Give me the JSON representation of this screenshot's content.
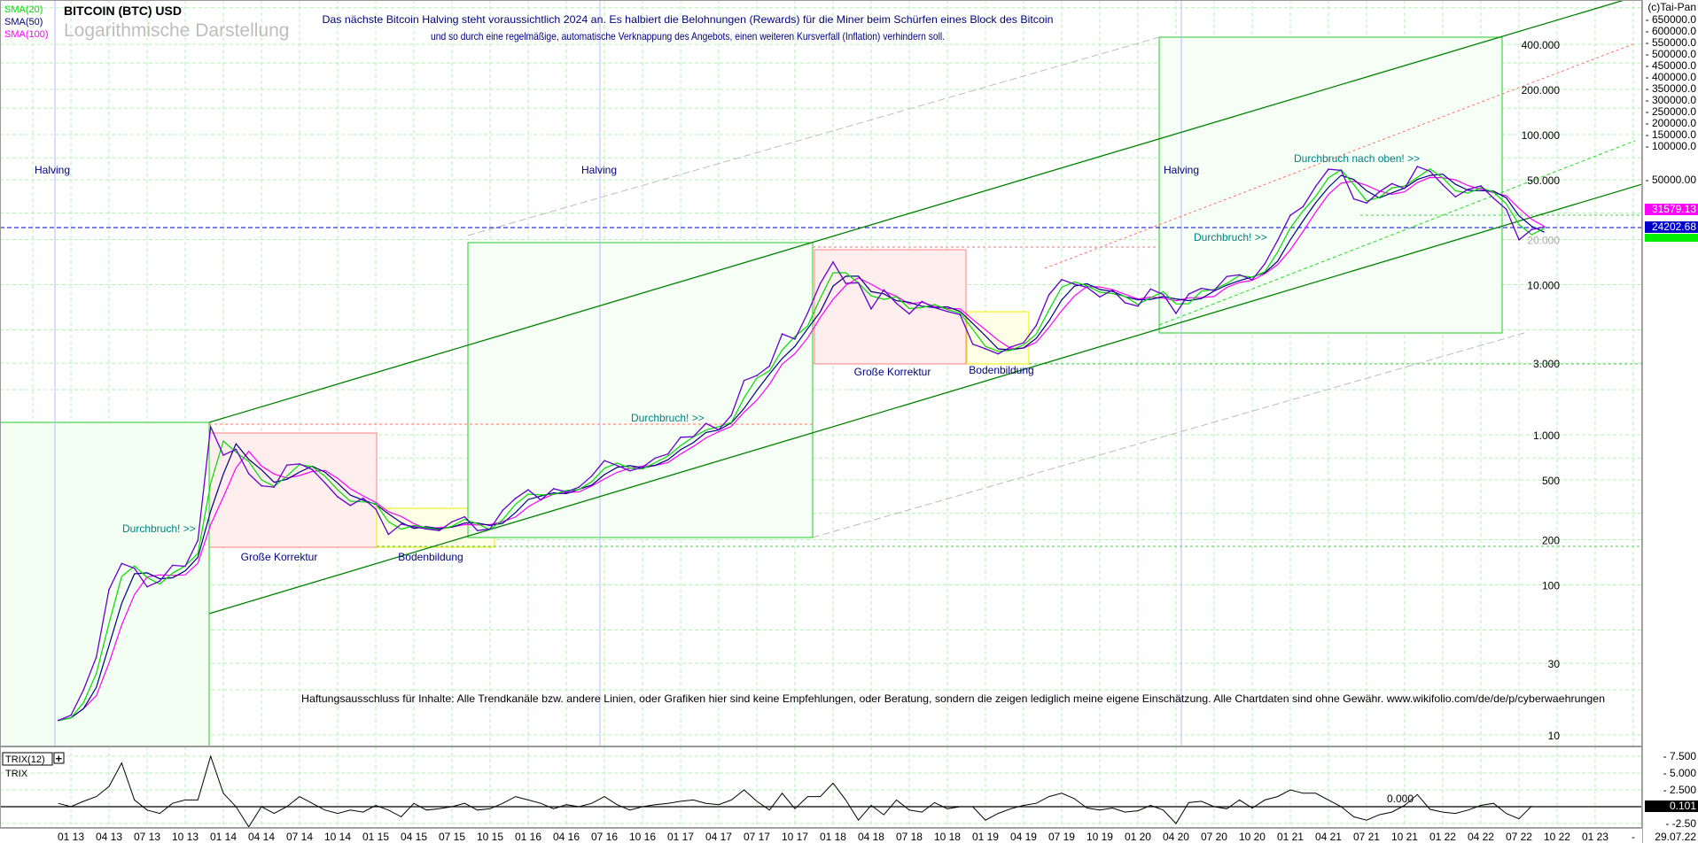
{
  "legend": {
    "sma20": "SMA(20)",
    "sma50": "SMA(50)",
    "sma100": "SMA(100)"
  },
  "title": "BITCOIN (BTC) USD",
  "subtitle": "Logarithmische Darstellung",
  "header_line1": "Das nächste Bitcoin Halving steht voraussichtlich 2024 an. Es halbiert die Belohnungen (Rewards) für die Miner beim Schürfen eines Block des Bitcoin",
  "header_line2": "und so durch eine regelmäßige, automatische Verknappung des Angebots, einen weiteren Kursverfall (Inflation) verhindern soll.",
  "copyright": "(c)Tai-Pan",
  "disclaimer": "Haftungsausschluss für Inhalte: Alle Trendkanäle bzw. andere Linien, oder Grafiken hier sind keine Empfehlungen, oder Beratung, sondern die zeigen lediglich meine eigene Einschätzung. Alle Chartdaten sind ohne Gewähr.  www.wikifolio.com/de/de/p/cyberwaehrungen",
  "annotations": {
    "halving": "Halving",
    "breakout": "Durchbruch! >>",
    "breakout_up": "Durchbruch nach oben! >>",
    "correction": "Große Korrektur",
    "bottoming": "Bodenbildung"
  },
  "colors": {
    "sma20": "#00dd00",
    "sma50": "#000080",
    "sma100": "#ff00ff",
    "price": "#6600cc",
    "grid": "#b0f5b0",
    "channel": "#008000"
  },
  "chart_data": {
    "type": "line",
    "title": "BITCOIN (BTC) USD",
    "yscale": "log",
    "ylim": [
      8,
      700000
    ],
    "start_month": "2012-11",
    "closes": [
      12.5,
      13.5,
      20,
      33,
      93,
      139,
      129,
      97,
      106,
      135,
      133,
      198,
      1130,
      732,
      800,
      550,
      457,
      448,
      628,
      640,
      586,
      478,
      386,
      338,
      378,
      320,
      217,
      254,
      244,
      236,
      230,
      263,
      284,
      230,
      236,
      314,
      377,
      430,
      368,
      437,
      416,
      448,
      531,
      673,
      624,
      575,
      608,
      700,
      745,
      963,
      970,
      1190,
      1080,
      1350,
      2300,
      2480,
      2870,
      4700,
      4340,
      6470,
      10200,
      14150,
      10200,
      10300,
      6900,
      9240,
      7500,
      6400,
      7730,
      7030,
      6630,
      6320,
      4020,
      3740,
      3460,
      3850,
      4100,
      5350,
      8570,
      10800,
      10080,
      9600,
      8290,
      9200,
      7570,
      7190,
      9350,
      8600,
      6440,
      8660,
      9460,
      9140,
      11350,
      11650,
      10780,
      13800,
      19700,
      29000,
      33100,
      45200,
      58800,
      57800,
      37300,
      35000,
      41500,
      47100,
      43800,
      61300,
      57000,
      46300,
      38500,
      43200,
      45500,
      37700,
      31800,
      19900,
      23300,
      24202.68
    ],
    "last_price": "24202.68",
    "sma100_last": "31579.13",
    "inner_price_labels": [
      {
        "v": 400000,
        "t": "400.000"
      },
      {
        "v": 200000,
        "t": "200.000"
      },
      {
        "v": 100000,
        "t": "100.000"
      },
      {
        "v": 50000,
        "t": "50.000"
      },
      {
        "v": 20000,
        "t": "20.000"
      },
      {
        "v": 10000,
        "t": "10.000"
      },
      {
        "v": 3000,
        "t": "3.000"
      },
      {
        "v": 1000,
        "t": "1.000"
      },
      {
        "v": 500,
        "t": "500"
      },
      {
        "v": 200,
        "t": "200"
      },
      {
        "v": 100,
        "t": "100"
      },
      {
        "v": 30,
        "t": "30"
      },
      {
        "v": 10,
        "t": "10"
      }
    ],
    "right_axis_labels": [
      {
        "v": 650000,
        "t": "650000.0"
      },
      {
        "v": 600000,
        "t": "600000.0"
      },
      {
        "v": 550000,
        "t": "550000.0"
      },
      {
        "v": 500000,
        "t": "500000.0"
      },
      {
        "v": 450000,
        "t": "450000.0"
      },
      {
        "v": 400000,
        "t": "400000.0"
      },
      {
        "v": 350000,
        "t": "350000.0"
      },
      {
        "v": 300000,
        "t": "300000.0"
      },
      {
        "v": 250000,
        "t": "250000.0"
      },
      {
        "v": 200000,
        "t": "200000.0"
      },
      {
        "v": 150000,
        "t": "150000.0"
      },
      {
        "v": 100000,
        "t": "100000.0"
      },
      {
        "v": 50000,
        "t": "50000.00"
      }
    ],
    "x_tick_labels": [
      "01 13",
      "04 13",
      "07 13",
      "10 13",
      "01 14",
      "04 14",
      "07 14",
      "10 14",
      "01 15",
      "04 15",
      "07 15",
      "10 15",
      "01 16",
      "04 16",
      "07 16",
      "10 16",
      "01 17",
      "04 17",
      "07 17",
      "10 17",
      "01 18",
      "04 18",
      "07 18",
      "10 18",
      "01 19",
      "04 19",
      "07 19",
      "10 19",
      "01 20",
      "04 20",
      "07 20",
      "10 20",
      "01 21",
      "04 21",
      "07 21",
      "10 21",
      "01 22",
      "04 22",
      "07 22",
      "10 22",
      "01 23"
    ],
    "x_dash": "-",
    "date_label": "29.07.22"
  },
  "trix": {
    "label": "TRIX(12)",
    "plus": "+",
    "sublabel": "TRIX",
    "zero_label": "0.000",
    "last_value": "0.101",
    "axis_labels": [
      {
        "v": 7.5,
        "t": "7.500"
      },
      {
        "v": 5,
        "t": "5.000"
      },
      {
        "v": 2.5,
        "t": "2.500"
      },
      {
        "v": -2.5,
        "t": "-2.50"
      }
    ],
    "values": [
      0.5,
      0,
      0.8,
      1.5,
      3,
      6.5,
      1,
      -0.5,
      -1,
      0.5,
      1,
      1,
      7.5,
      2,
      0,
      -3,
      0,
      -1,
      0,
      1.5,
      0.5,
      -0.5,
      -1,
      -0.5,
      -0.8,
      0.2,
      -0.5,
      -1.5,
      0.5,
      -0.5,
      -0.3,
      0,
      0.5,
      -0.5,
      -0.3,
      0.5,
      1.5,
      1,
      0.5,
      -0.3,
      0.3,
      0,
      0.5,
      1.5,
      0.3,
      -0.5,
      0,
      0.3,
      0.5,
      0.8,
      1,
      0.5,
      0.3,
      1,
      2.5,
      0.8,
      -0.5,
      2,
      -0.3,
      1.5,
      1.5,
      3.5,
      1,
      -2,
      0.2,
      -1.2,
      1,
      -0.5,
      -0.8,
      0.6,
      -0.3,
      0,
      0,
      -2,
      -1,
      -0.3,
      0.2,
      0.5,
      1.5,
      2,
      1.2,
      -0.2,
      -0.5,
      -0.2,
      -0.8,
      -0.6,
      0.2,
      -0.5,
      -2.5,
      0.6,
      0.8,
      0,
      -0.3,
      1,
      -0.2,
      1,
      1.5,
      2.5,
      2,
      2,
      1,
      0,
      -1.5,
      -2,
      -1.2,
      -0.8,
      0.2,
      1.8,
      -0.4,
      -0.8,
      -1,
      -0.5,
      0.2,
      0.5,
      -1,
      -1.8,
      0.1
    ]
  }
}
